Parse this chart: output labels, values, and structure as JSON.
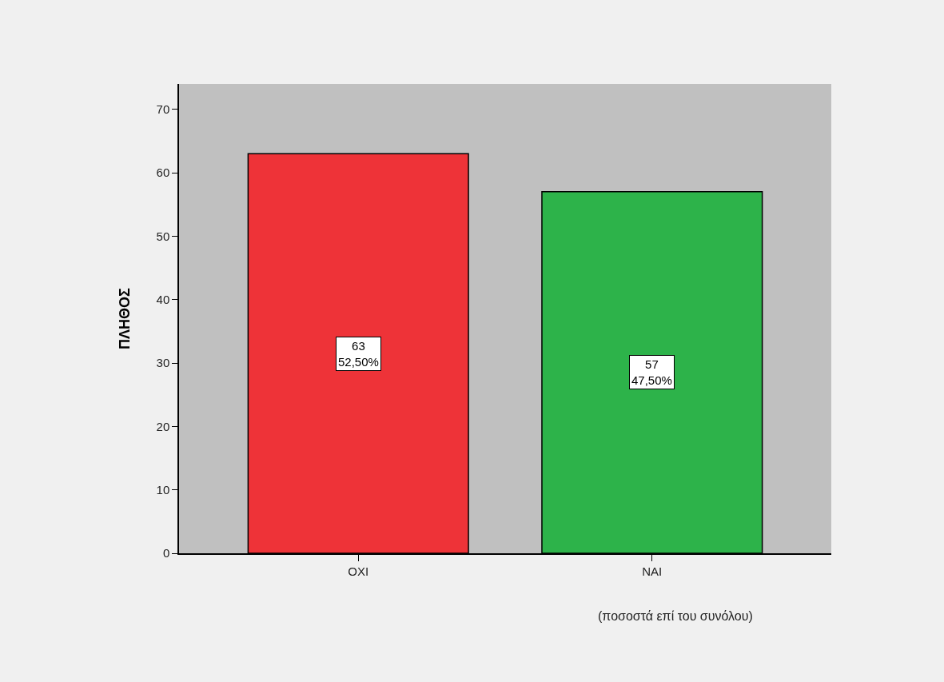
{
  "chart_data": {
    "type": "bar",
    "categories": [
      "ΟΧΙ",
      "ΝΑΙ"
    ],
    "values": [
      63,
      57
    ],
    "colors": [
      "#ee3338",
      "#2db34a"
    ],
    "value_labels": [
      "63\n52,50%",
      "57\n47,50%"
    ],
    "ylabel": "ΠΛΗΘΟΣ",
    "xlabel": "(ποσοστά επί του συνόλου)",
    "ylim": [
      0,
      74
    ],
    "yticks": [
      0,
      10,
      20,
      30,
      40,
      50,
      60,
      70
    ],
    "grid": false
  }
}
